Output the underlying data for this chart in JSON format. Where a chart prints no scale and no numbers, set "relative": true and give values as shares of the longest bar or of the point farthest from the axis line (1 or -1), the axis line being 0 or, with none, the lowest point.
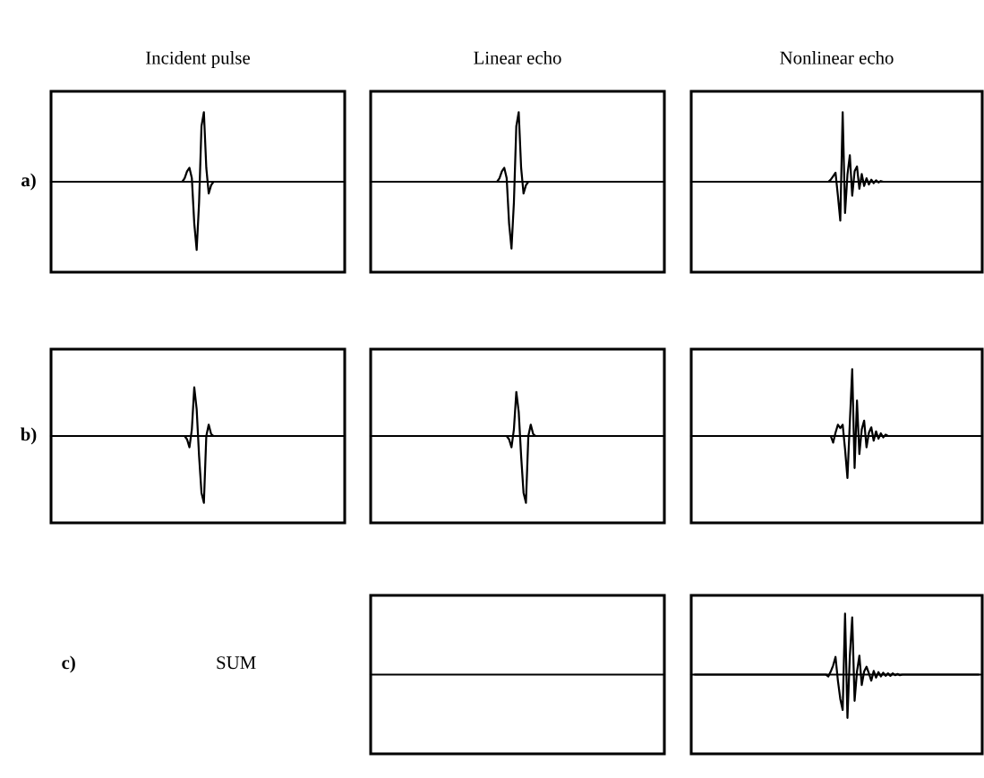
{
  "chart_data": [
    {
      "type": "line",
      "relative": true,
      "title": "Incident pulse",
      "ylabel": "a)",
      "categories": [
        null,
        null,
        null,
        null,
        null,
        null,
        null,
        null,
        null,
        null,
        null,
        null,
        null,
        null,
        null,
        null,
        null,
        null,
        null,
        null,
        null,
        null,
        null,
        null,
        null,
        null,
        null,
        null,
        null,
        null,
        null,
        null,
        null,
        null,
        null,
        null,
        null,
        null,
        null,
        null,
        null,
        null,
        null,
        null,
        null,
        null,
        null,
        null,
        null,
        null,
        null,
        null,
        null,
        null,
        null,
        null,
        null,
        null,
        null,
        null,
        null,
        null,
        null,
        null,
        null,
        null,
        null,
        null,
        null,
        null,
        null,
        null,
        null,
        null,
        null,
        null,
        null,
        null,
        null,
        null,
        null,
        null,
        null,
        null,
        null,
        null,
        null,
        null,
        null,
        null,
        null,
        null,
        null,
        null,
        null,
        null,
        null,
        null,
        null,
        null,
        null,
        null,
        null,
        null,
        null,
        null,
        null,
        null,
        null,
        null,
        null,
        null,
        null,
        null,
        null,
        null,
        null,
        null,
        null,
        null
      ],
      "series": [
        {
          "color": "#000000",
          "values": [
            0,
            0,
            0,
            0,
            0,
            0,
            0,
            0,
            0,
            0,
            0,
            0,
            0,
            0,
            0,
            0,
            0,
            0,
            0,
            0,
            0,
            0,
            0,
            0,
            0,
            0,
            0,
            0,
            0,
            0,
            0,
            0,
            0,
            0,
            0,
            0,
            0,
            0,
            0,
            0,
            0,
            0,
            0,
            0,
            0,
            0,
            0,
            0,
            0,
            0,
            0,
            0,
            0,
            0,
            0.05,
            0.15,
            0.2,
            0.05,
            -0.6,
            -0.98,
            -0.3,
            0.8,
            1.0,
            0.2,
            -0.17,
            -0.05,
            0,
            0,
            0,
            0,
            0,
            0,
            0,
            0,
            0,
            0,
            0,
            0,
            0,
            0,
            0,
            0,
            0,
            0,
            0,
            0,
            0,
            0,
            0,
            0,
            0,
            0,
            0,
            0,
            0,
            0,
            0,
            0,
            0,
            0,
            0,
            0,
            0,
            0,
            0,
            0,
            0,
            0,
            0,
            0,
            0,
            0,
            0,
            0,
            0,
            0,
            0,
            0,
            0,
            0
          ]
        }
      ]
    },
    {
      "type": "line",
      "relative": true,
      "title": "Linear echo",
      "categories": [
        null,
        null,
        null,
        null,
        null,
        null,
        null,
        null,
        null,
        null,
        null,
        null,
        null,
        null,
        null,
        null,
        null,
        null,
        null,
        null,
        null,
        null,
        null,
        null,
        null,
        null,
        null,
        null,
        null,
        null,
        null,
        null,
        null,
        null,
        null,
        null,
        null,
        null,
        null,
        null,
        null,
        null,
        null,
        null,
        null,
        null,
        null,
        null,
        null,
        null,
        null,
        null,
        null,
        null,
        null,
        null,
        null,
        null,
        null,
        null,
        null,
        null,
        null,
        null,
        null,
        null,
        null,
        null,
        null,
        null,
        null,
        null,
        null,
        null,
        null,
        null,
        null,
        null,
        null,
        null,
        null,
        null,
        null,
        null,
        null,
        null,
        null,
        null,
        null,
        null,
        null,
        null,
        null,
        null,
        null,
        null,
        null,
        null,
        null,
        null,
        null,
        null,
        null,
        null,
        null,
        null,
        null,
        null,
        null,
        null,
        null,
        null,
        null,
        null,
        null,
        null,
        null,
        null,
        null,
        null
      ],
      "series": [
        {
          "color": "#000000",
          "values": [
            0,
            0,
            0,
            0,
            0,
            0,
            0,
            0,
            0,
            0,
            0,
            0,
            0,
            0,
            0,
            0,
            0,
            0,
            0,
            0,
            0,
            0,
            0,
            0,
            0,
            0,
            0,
            0,
            0,
            0,
            0,
            0,
            0,
            0,
            0,
            0,
            0,
            0,
            0,
            0,
            0,
            0,
            0,
            0,
            0,
            0,
            0,
            0,
            0,
            0,
            0,
            0,
            0.05,
            0.15,
            0.2,
            0.05,
            -0.6,
            -0.96,
            -0.3,
            0.8,
            1.0,
            0.2,
            -0.17,
            -0.05,
            0,
            0,
            0,
            0,
            0,
            0,
            0,
            0,
            0,
            0,
            0,
            0,
            0,
            0,
            0,
            0,
            0,
            0,
            0,
            0,
            0,
            0,
            0,
            0,
            0,
            0,
            0,
            0,
            0,
            0,
            0,
            0,
            0,
            0,
            0,
            0,
            0,
            0,
            0,
            0,
            0,
            0,
            0,
            0,
            0,
            0,
            0,
            0,
            0,
            0,
            0,
            0,
            0,
            0,
            0,
            0
          ]
        }
      ]
    },
    {
      "type": "line",
      "relative": true,
      "title": "Nonlinear echo",
      "categories": [
        null,
        null,
        null,
        null,
        null,
        null,
        null,
        null,
        null,
        null,
        null,
        null,
        null,
        null,
        null,
        null,
        null,
        null,
        null,
        null,
        null,
        null,
        null,
        null,
        null,
        null,
        null,
        null,
        null,
        null,
        null,
        null,
        null,
        null,
        null,
        null,
        null,
        null,
        null,
        null,
        null,
        null,
        null,
        null,
        null,
        null,
        null,
        null,
        null,
        null,
        null,
        null,
        null,
        null,
        null,
        null,
        null,
        null,
        null,
        null,
        null,
        null,
        null,
        null,
        null,
        null,
        null,
        null,
        null,
        null,
        null,
        null,
        null,
        null,
        null,
        null,
        null,
        null,
        null,
        null,
        null,
        null,
        null,
        null,
        null,
        null,
        null,
        null,
        null,
        null,
        null,
        null,
        null,
        null,
        null,
        null,
        null,
        null,
        null,
        null,
        null,
        null,
        null,
        null,
        null,
        null,
        null,
        null,
        null,
        null,
        null,
        null,
        null,
        null,
        null,
        null,
        null,
        null,
        null,
        null
      ],
      "series": [
        {
          "color": "#000000",
          "values": [
            0,
            0,
            0,
            0,
            0,
            0,
            0,
            0,
            0,
            0,
            0,
            0,
            0,
            0,
            0,
            0,
            0,
            0,
            0,
            0,
            0,
            0,
            0,
            0,
            0,
            0,
            0,
            0,
            0,
            0,
            0,
            0,
            0,
            0,
            0,
            0,
            0,
            0,
            0,
            0,
            0,
            0,
            0,
            0,
            0,
            0,
            0,
            0,
            0,
            0,
            0,
            0,
            0,
            0,
            0,
            0,
            0,
            0.03,
            0.08,
            0.13,
            -0.2,
            -0.56,
            1.0,
            -0.45,
            0.1,
            0.38,
            -0.2,
            0.15,
            0.22,
            -0.1,
            0.11,
            -0.06,
            0.05,
            -0.04,
            0.03,
            -0.02,
            0.02,
            -0.01,
            0.01,
            0,
            0,
            0,
            0,
            0,
            0,
            0,
            0,
            0,
            0,
            0,
            0,
            0,
            0,
            0,
            0,
            0,
            0,
            0,
            0,
            0,
            0,
            0,
            0,
            0,
            0,
            0,
            0,
            0,
            0,
            0,
            0,
            0,
            0,
            0,
            0,
            0,
            0,
            0,
            0,
            0
          ]
        }
      ]
    },
    {
      "type": "line",
      "relative": true,
      "ylabel": "b)",
      "categories": [
        null,
        null,
        null,
        null,
        null,
        null,
        null,
        null,
        null,
        null,
        null,
        null,
        null,
        null,
        null,
        null,
        null,
        null,
        null,
        null,
        null,
        null,
        null,
        null,
        null,
        null,
        null,
        null,
        null,
        null,
        null,
        null,
        null,
        null,
        null,
        null,
        null,
        null,
        null,
        null,
        null,
        null,
        null,
        null,
        null,
        null,
        null,
        null,
        null,
        null,
        null,
        null,
        null,
        null,
        null,
        null,
        null,
        null,
        null,
        null,
        null,
        null,
        null,
        null,
        null,
        null,
        null,
        null,
        null,
        null,
        null,
        null,
        null,
        null,
        null,
        null,
        null,
        null,
        null,
        null,
        null,
        null,
        null,
        null,
        null,
        null,
        null,
        null,
        null,
        null,
        null,
        null,
        null,
        null,
        null,
        null,
        null,
        null,
        null,
        null,
        null,
        null,
        null,
        null,
        null,
        null,
        null,
        null,
        null,
        null,
        null,
        null,
        null,
        null,
        null,
        null,
        null,
        null,
        null,
        null
      ],
      "series": [
        {
          "color": "#000000",
          "values": [
            0,
            0,
            0,
            0,
            0,
            0,
            0,
            0,
            0,
            0,
            0,
            0,
            0,
            0,
            0,
            0,
            0,
            0,
            0,
            0,
            0,
            0,
            0,
            0,
            0,
            0,
            0,
            0,
            0,
            0,
            0,
            0,
            0,
            0,
            0,
            0,
            0,
            0,
            0,
            0,
            0,
            0,
            0,
            0,
            0,
            0,
            0,
            0,
            0,
            0,
            0,
            0,
            0,
            0,
            0,
            -0.05,
            -0.17,
            0.1,
            0.73,
            0.4,
            -0.3,
            -0.85,
            -1.0,
            0.0,
            0.17,
            0.03,
            0,
            0,
            0,
            0,
            0,
            0,
            0,
            0,
            0,
            0,
            0,
            0,
            0,
            0,
            0,
            0,
            0,
            0,
            0,
            0,
            0,
            0,
            0,
            0,
            0,
            0,
            0,
            0,
            0,
            0,
            0,
            0,
            0,
            0,
            0,
            0,
            0,
            0,
            0,
            0,
            0,
            0,
            0,
            0,
            0,
            0,
            0,
            0,
            0,
            0,
            0,
            0,
            0,
            0
          ]
        }
      ]
    },
    {
      "type": "line",
      "relative": true,
      "categories": [
        null,
        null,
        null,
        null,
        null,
        null,
        null,
        null,
        null,
        null,
        null,
        null,
        null,
        null,
        null,
        null,
        null,
        null,
        null,
        null,
        null,
        null,
        null,
        null,
        null,
        null,
        null,
        null,
        null,
        null,
        null,
        null,
        null,
        null,
        null,
        null,
        null,
        null,
        null,
        null,
        null,
        null,
        null,
        null,
        null,
        null,
        null,
        null,
        null,
        null,
        null,
        null,
        null,
        null,
        null,
        null,
        null,
        null,
        null,
        null,
        null,
        null,
        null,
        null,
        null,
        null,
        null,
        null,
        null,
        null,
        null,
        null,
        null,
        null,
        null,
        null,
        null,
        null,
        null,
        null,
        null,
        null,
        null,
        null,
        null,
        null,
        null,
        null,
        null,
        null,
        null,
        null,
        null,
        null,
        null,
        null,
        null,
        null,
        null,
        null,
        null,
        null,
        null,
        null,
        null,
        null,
        null,
        null,
        null,
        null,
        null,
        null,
        null,
        null,
        null,
        null,
        null,
        null,
        null,
        null
      ],
      "series": [
        {
          "color": "#000000",
          "values": [
            0,
            0,
            0,
            0,
            0,
            0,
            0,
            0,
            0,
            0,
            0,
            0,
            0,
            0,
            0,
            0,
            0,
            0,
            0,
            0,
            0,
            0,
            0,
            0,
            0,
            0,
            0,
            0,
            0,
            0,
            0,
            0,
            0,
            0,
            0,
            0,
            0,
            0,
            0,
            0,
            0,
            0,
            0,
            0,
            0,
            0,
            0,
            0,
            0,
            0,
            0,
            0,
            0,
            0,
            0,
            0,
            -0.05,
            -0.17,
            0.1,
            0.66,
            0.36,
            -0.3,
            -0.85,
            -1.0,
            0.0,
            0.17,
            0.03,
            0,
            0,
            0,
            0,
            0,
            0,
            0,
            0,
            0,
            0,
            0,
            0,
            0,
            0,
            0,
            0,
            0,
            0,
            0,
            0,
            0,
            0,
            0,
            0,
            0,
            0,
            0,
            0,
            0,
            0,
            0,
            0,
            0,
            0,
            0,
            0,
            0,
            0,
            0,
            0,
            0,
            0,
            0,
            0,
            0,
            0,
            0,
            0,
            0,
            0,
            0,
            0,
            0
          ]
        }
      ]
    },
    {
      "type": "line",
      "relative": true,
      "categories": [
        null,
        null,
        null,
        null,
        null,
        null,
        null,
        null,
        null,
        null,
        null,
        null,
        null,
        null,
        null,
        null,
        null,
        null,
        null,
        null,
        null,
        null,
        null,
        null,
        null,
        null,
        null,
        null,
        null,
        null,
        null,
        null,
        null,
        null,
        null,
        null,
        null,
        null,
        null,
        null,
        null,
        null,
        null,
        null,
        null,
        null,
        null,
        null,
        null,
        null,
        null,
        null,
        null,
        null,
        null,
        null,
        null,
        null,
        null,
        null,
        null,
        null,
        null,
        null,
        null,
        null,
        null,
        null,
        null,
        null,
        null,
        null,
        null,
        null,
        null,
        null,
        null,
        null,
        null,
        null,
        null,
        null,
        null,
        null,
        null,
        null,
        null,
        null,
        null,
        null,
        null,
        null,
        null,
        null,
        null,
        null,
        null,
        null,
        null,
        null,
        null,
        null,
        null,
        null,
        null,
        null,
        null,
        null,
        null,
        null,
        null,
        null,
        null,
        null,
        null,
        null,
        null,
        null,
        null,
        null
      ],
      "series": [
        {
          "color": "#000000",
          "values": [
            0,
            0,
            0,
            0,
            0,
            0,
            0,
            0,
            0,
            0,
            0,
            0,
            0,
            0,
            0,
            0,
            0,
            0,
            0,
            0,
            0,
            0,
            0,
            0,
            0,
            0,
            0,
            0,
            0,
            0,
            0,
            0,
            0,
            0,
            0,
            0,
            0,
            0,
            0,
            0,
            0,
            0,
            0,
            0,
            0,
            0,
            0,
            0,
            0,
            0,
            0,
            0,
            0,
            0,
            0,
            0,
            0,
            0,
            -0.1,
            0.05,
            0.17,
            0.12,
            0.17,
            -0.2,
            -0.63,
            0.2,
            1.0,
            -0.48,
            0.53,
            -0.27,
            0.1,
            0.23,
            -0.17,
            0.05,
            0.13,
            -0.07,
            0.07,
            -0.04,
            0.04,
            -0.02,
            0.02,
            0,
            0,
            0,
            0,
            0,
            0,
            0,
            0,
            0,
            0,
            0,
            0,
            0,
            0,
            0,
            0,
            0,
            0,
            0,
            0,
            0,
            0,
            0,
            0,
            0,
            0,
            0,
            0,
            0,
            0,
            0,
            0,
            0,
            0,
            0,
            0,
            0,
            0,
            0
          ]
        }
      ]
    },
    {
      "type": "other",
      "annotations": [
        "c)",
        "SUM"
      ]
    },
    {
      "type": "other"
    },
    {
      "type": "line",
      "relative": true,
      "categories": [
        null,
        null,
        null,
        null,
        null,
        null,
        null,
        null,
        null,
        null,
        null,
        null,
        null,
        null,
        null,
        null,
        null,
        null,
        null,
        null,
        null,
        null,
        null,
        null,
        null,
        null,
        null,
        null,
        null,
        null,
        null,
        null,
        null,
        null,
        null,
        null,
        null,
        null,
        null,
        null,
        null,
        null,
        null,
        null,
        null,
        null,
        null,
        null,
        null,
        null,
        null,
        null,
        null,
        null,
        null,
        null,
        null,
        null,
        null,
        null,
        null,
        null,
        null,
        null,
        null,
        null,
        null,
        null,
        null,
        null,
        null,
        null,
        null,
        null,
        null,
        null,
        null,
        null,
        null,
        null,
        null,
        null,
        null,
        null,
        null,
        null,
        null,
        null,
        null,
        null,
        null,
        null,
        null,
        null,
        null,
        null,
        null,
        null,
        null,
        null,
        null,
        null,
        null,
        null,
        null,
        null,
        null,
        null,
        null,
        null,
        null,
        null,
        null,
        null,
        null,
        null,
        null,
        null,
        null,
        null
      ],
      "series": [
        {
          "color": "#000000",
          "values": [
            0,
            0,
            0,
            0,
            0,
            0,
            0,
            0,
            0,
            0,
            0,
            0,
            0,
            0,
            0,
            0,
            0,
            0,
            0,
            0,
            0,
            0,
            0,
            0,
            0,
            0,
            0,
            0,
            0,
            0,
            0,
            0,
            0,
            0,
            0,
            0,
            0,
            0,
            0,
            0,
            0,
            0,
            0,
            0,
            0,
            0,
            0,
            0,
            0,
            0,
            0,
            0,
            0,
            0,
            0,
            0,
            -0.03,
            0.05,
            0.15,
            0.29,
            -0.1,
            -0.4,
            -0.58,
            1.0,
            -0.71,
            0.3,
            0.94,
            -0.43,
            0.05,
            0.31,
            -0.17,
            0.05,
            0.13,
            0.02,
            -0.1,
            0.06,
            -0.05,
            0.04,
            -0.03,
            0.03,
            -0.02,
            0.02,
            -0.02,
            0.02,
            -0.01,
            0.01,
            -0.01,
            0,
            0,
            0,
            0,
            0,
            0,
            0,
            0,
            0,
            0,
            0,
            0,
            0,
            0,
            0,
            0,
            0,
            0,
            0,
            0,
            0,
            0,
            0,
            0,
            0,
            0,
            0,
            0,
            0,
            0,
            0,
            0,
            0
          ]
        }
      ]
    }
  ]
}
